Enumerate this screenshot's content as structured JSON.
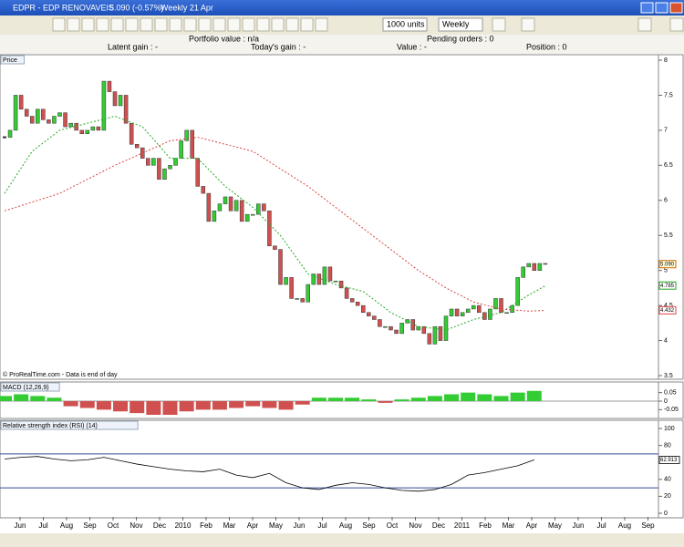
{
  "window": {
    "title": "EDPR - EDP RENOVAVEIS",
    "quote": "5.090 (-0.57%)",
    "period": "Weekly  21 Apr"
  },
  "toolbar": {
    "quantity": "1000 units",
    "timeframe": "Weekly"
  },
  "info": {
    "portfolio_value": "Portfolio value : n/a",
    "pending_orders": "Pending orders : 0",
    "latent_gain": "Latent gain : -",
    "todays_gain": "Today's gain : -",
    "value": "Value : -",
    "position": "Position : 0"
  },
  "x_axis": {
    "categories": [
      "Jun",
      "Jul",
      "Aug",
      "Sep",
      "Oct",
      "Nov",
      "Dec",
      "2010",
      "Feb",
      "Mar",
      "Apr",
      "May",
      "Jun",
      "Jul",
      "Aug",
      "Sep",
      "Oct",
      "Nov",
      "Dec",
      "2011",
      "Feb",
      "Mar",
      "Apr",
      "May",
      "Jun",
      "Jul",
      "Aug",
      "Sep"
    ]
  },
  "chart_data": [
    {
      "type": "candlestick",
      "title": "Price",
      "note": "© ProRealTime.com - Data is end of day",
      "up_color": "#33cc33",
      "down_color": "#d05050",
      "values": [
        6.9,
        7.0,
        7.5,
        7.3,
        7.2,
        7.1,
        7.3,
        7.15,
        7.1,
        7.2,
        7.25,
        7.05,
        7.1,
        7.0,
        6.95,
        7.0,
        7.05,
        7.0,
        7.7,
        7.55,
        7.35,
        7.5,
        7.1,
        6.8,
        6.75,
        6.6,
        6.5,
        6.6,
        6.3,
        6.45,
        6.5,
        6.6,
        6.85,
        7.0,
        6.6,
        6.2,
        6.1,
        5.7,
        5.85,
        5.95,
        6.05,
        5.85,
        6.0,
        5.7,
        5.8,
        5.8,
        5.95,
        5.85,
        5.35,
        5.3,
        4.8,
        4.9,
        4.6,
        4.6,
        4.55,
        4.8,
        4.95,
        4.8,
        5.05,
        4.85,
        4.85,
        4.75,
        4.6,
        4.55,
        4.5,
        4.4,
        4.35,
        4.3,
        4.2,
        4.2,
        4.15,
        4.1,
        4.25,
        4.3,
        4.15,
        4.2,
        4.1,
        3.95,
        4.2,
        4.0,
        4.35,
        4.45,
        4.35,
        4.4,
        4.45,
        4.5,
        4.4,
        4.3,
        4.45,
        4.6,
        4.4,
        4.4,
        4.5,
        4.9,
        5.05,
        5.1,
        5.0,
        5.1,
        5.09
      ],
      "series": [
        {
          "color": "#22aa22",
          "x": [
            0,
            5,
            10,
            20,
            25,
            30,
            35,
            40,
            45,
            50,
            55,
            60,
            65,
            70,
            75,
            80,
            85,
            90,
            95,
            98
          ],
          "values": [
            6.1,
            6.7,
            7.0,
            7.2,
            7.05,
            6.6,
            6.6,
            6.2,
            5.9,
            5.5,
            4.95,
            4.8,
            4.7,
            4.4,
            4.2,
            4.15,
            4.3,
            4.4,
            4.65,
            4.78
          ]
        },
        {
          "color": "#dd4444",
          "x": [
            0,
            10,
            20,
            30,
            35,
            45,
            55,
            65,
            75,
            80,
            85,
            90,
            95,
            98
          ],
          "values": [
            5.85,
            6.1,
            6.5,
            6.85,
            6.9,
            6.7,
            6.2,
            5.6,
            5.0,
            4.75,
            4.55,
            4.45,
            4.42,
            4.43
          ]
        }
      ],
      "last_labels": [
        {
          "value": 5.09,
          "label": "5.090"
        },
        {
          "value": 4.785,
          "label": "4.785"
        },
        {
          "value": 4.432,
          "label": "4.432"
        }
      ],
      "ylim": [
        3.5,
        8
      ],
      "yticks": [
        3.5,
        4,
        4.5,
        5,
        5.5,
        6,
        6.5,
        7,
        7.5,
        8
      ]
    },
    {
      "type": "bar",
      "title": "MACD (12,26,9)",
      "up_color": "#33cc33",
      "down_color": "#d05050",
      "x": [
        0,
        3,
        6,
        9,
        12,
        15,
        18,
        21,
        24,
        27,
        30,
        33,
        36,
        39,
        42,
        45,
        48,
        51,
        54,
        57,
        60,
        63,
        66,
        69,
        72,
        75,
        78,
        81,
        84,
        87,
        90,
        93,
        96
      ],
      "values": [
        0.03,
        0.04,
        0.03,
        0.02,
        -0.03,
        -0.04,
        -0.05,
        -0.06,
        -0.07,
        -0.08,
        -0.08,
        -0.06,
        -0.05,
        -0.05,
        -0.04,
        -0.03,
        -0.04,
        -0.05,
        -0.02,
        0.02,
        0.02,
        0.02,
        0.01,
        -0.01,
        0.01,
        0.02,
        0.03,
        0.04,
        0.05,
        0.04,
        0.03,
        0.05,
        0.06
      ],
      "ylim": [
        -0.08,
        0.08
      ],
      "yticks": [
        0.05,
        0,
        -0.05
      ]
    },
    {
      "type": "line",
      "title": "Relative strength index (RSI) (14)",
      "color": "#000000",
      "x": [
        0,
        3,
        6,
        9,
        12,
        15,
        18,
        21,
        24,
        27,
        30,
        33,
        36,
        39,
        42,
        45,
        48,
        51,
        54,
        57,
        60,
        63,
        66,
        69,
        72,
        75,
        78,
        81,
        84,
        87,
        90,
        93,
        96
      ],
      "values": [
        64,
        66,
        67,
        64,
        62,
        63,
        66,
        62,
        58,
        55,
        52,
        50,
        49,
        52,
        45,
        42,
        47,
        36,
        30,
        28,
        33,
        36,
        34,
        30,
        27,
        26,
        28,
        34,
        45,
        48,
        52,
        56,
        63
      ],
      "last_label": {
        "value": 62.913,
        "label": "62.913"
      },
      "levels": [
        70,
        30
      ],
      "ylim": [
        0,
        100
      ],
      "yticks": [
        0,
        20,
        40,
        60,
        80,
        100
      ]
    }
  ]
}
